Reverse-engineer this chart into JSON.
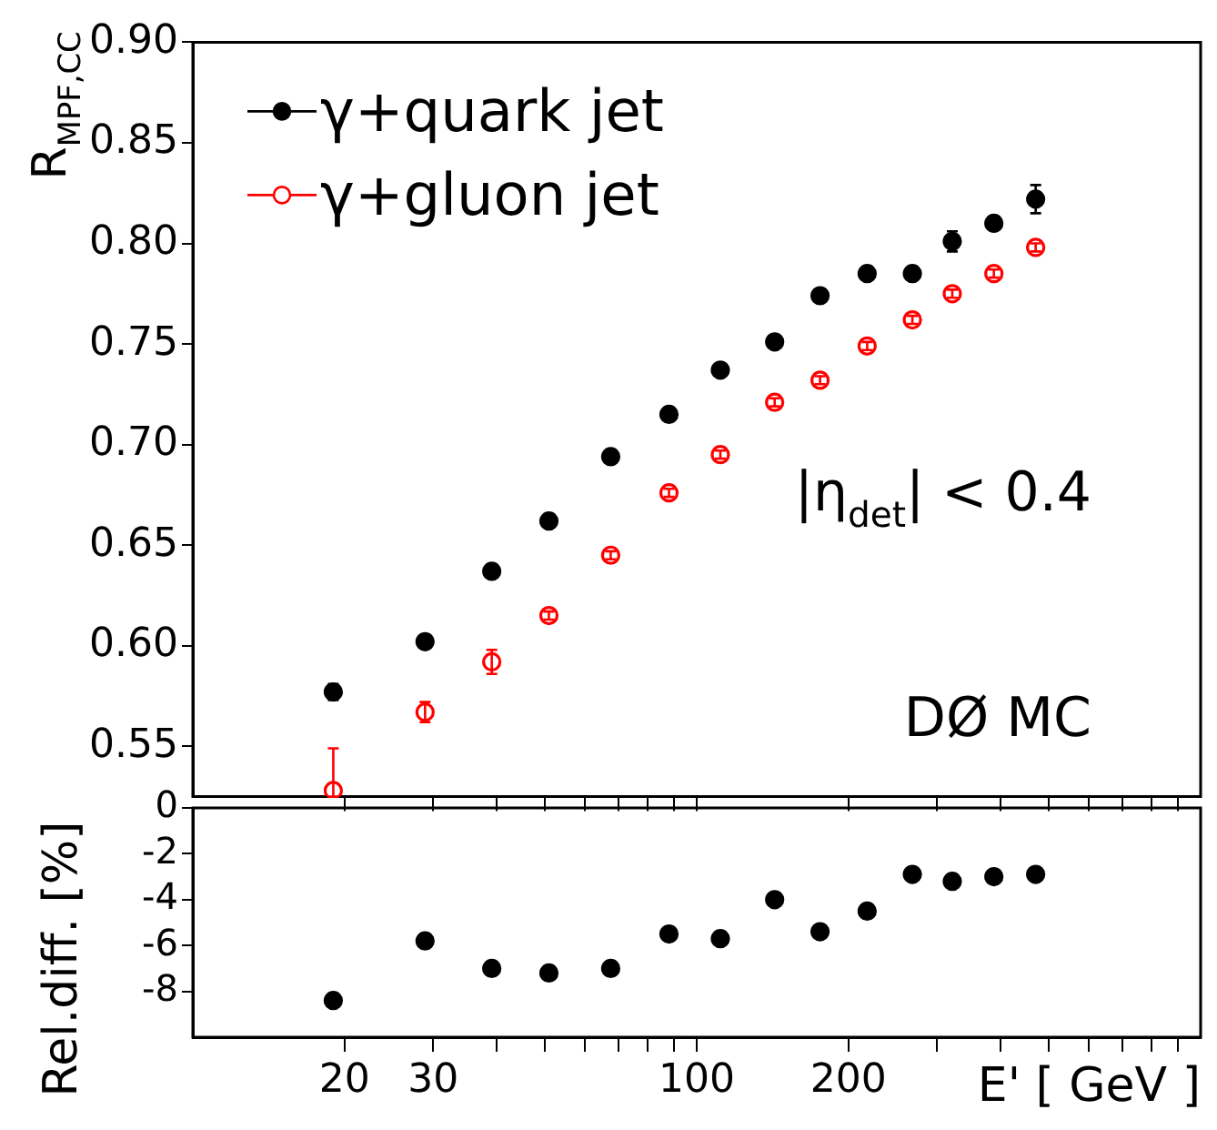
{
  "chart_data": [
    {
      "type": "scatter",
      "ylabel": "R$_{MPF,CC}$",
      "legend": "top left",
      "marker": "circle",
      "tick_labels": "y",
      "x": [
        19.0,
        28.9,
        39.2,
        50.9,
        67.5,
        88.1,
        111.4,
        142.8,
        175.7,
        217.9,
        267.9,
        321.5,
        388.8,
        470.6
      ],
      "series": [
        {
          "name": "γ+quark jet",
          "color": "#000000",
          "values": [
            0.577,
            0.602,
            0.637,
            0.662,
            0.694,
            0.715,
            0.737,
            0.751,
            0.774,
            0.785,
            0.785,
            0.801,
            0.81,
            0.822
          ],
          "errors": [
            0.004,
            null,
            null,
            null,
            null,
            null,
            null,
            null,
            null,
            null,
            null,
            0.005,
            null,
            0.007
          ]
        },
        {
          "name": "γ+gluon jet",
          "color": "#ff0000",
          "values": [
            0.528,
            0.567,
            0.592,
            0.615,
            0.645,
            0.676,
            0.695,
            0.721,
            0.732,
            0.749,
            0.762,
            0.775,
            0.785,
            0.798
          ],
          "errors": [
            [
              0.525,
              0.549
            ],
            0.005,
            0.006,
            0.002,
            0.002,
            0.002,
            0.002,
            0.002,
            0.002,
            0.002,
            0.002,
            0.002,
            0.002,
            0.002
          ]
        }
      ],
      "xlim": [
        10,
        1000
      ],
      "xticks": [
        {
          "value": 20,
          "label": null
        },
        {
          "value": 30,
          "label": null
        },
        {
          "value": 40,
          "label": null
        },
        {
          "value": 50,
          "label": null
        },
        {
          "value": 60,
          "label": null
        },
        {
          "value": 70,
          "label": null
        },
        {
          "value": 80,
          "label": null
        },
        {
          "value": 90,
          "label": null
        },
        {
          "value": 100,
          "label": null
        },
        {
          "value": 200,
          "label": null
        },
        {
          "value": 300,
          "label": null
        },
        {
          "value": 400,
          "label": null
        },
        {
          "value": 500,
          "label": null
        },
        {
          "value": 600,
          "label": null
        },
        {
          "value": 700,
          "label": null
        },
        {
          "value": 800,
          "label": null
        },
        {
          "value": 900,
          "label": null
        }
      ],
      "log": "x",
      "ylim": [
        0.525,
        0.9
      ],
      "yticks": [
        {
          "value": 0.55,
          "label": "0.55"
        },
        {
          "value": 0.6,
          "label": "0.60"
        },
        {
          "value": 0.65,
          "label": "0.65"
        },
        {
          "value": 0.7,
          "label": "0.70"
        },
        {
          "value": 0.75,
          "label": "0.75"
        },
        {
          "value": 0.8,
          "label": "0.80"
        },
        {
          "value": 0.85,
          "label": "0.85"
        },
        {
          "value": 0.9,
          "label": "0.90"
        }
      ],
      "annotations": [
        "|η$_{det}$| < 0.4",
        "DØ MC"
      ]
    },
    {
      "type": "scatter",
      "xlabel": "E' [ GeV ]",
      "ylabel": "Rel.diff. [%]",
      "marker": "circle",
      "x": [
        19.0,
        28.9,
        39.2,
        50.9,
        67.5,
        88.1,
        111.4,
        142.8,
        175.7,
        217.9,
        267.9,
        321.5,
        388.8,
        470.6
      ],
      "series": [
        {
          "color": "#000000",
          "values": [
            -8.4,
            -5.8,
            -7.0,
            -7.2,
            -7.0,
            -5.5,
            -5.7,
            -4.0,
            -5.4,
            -4.5,
            -2.9,
            -3.2,
            -3.0,
            -2.9
          ]
        }
      ],
      "xlim": [
        10,
        1000
      ],
      "xticks": [
        20,
        30,
        {
          "value": 40,
          "label": null
        },
        {
          "value": 50,
          "label": null
        },
        {
          "value": 60,
          "label": null
        },
        {
          "value": 70,
          "label": null
        },
        {
          "value": 80,
          "label": null
        },
        {
          "value": 90,
          "label": null
        },
        100,
        200,
        {
          "value": 300,
          "label": null
        },
        {
          "value": 400,
          "label": null
        },
        {
          "value": 500,
          "label": null
        },
        {
          "value": 600,
          "label": null
        },
        {
          "value": 700,
          "label": null
        },
        {
          "value": 800,
          "label": null
        },
        {
          "value": 900,
          "label": null
        }
      ],
      "log": "x",
      "ylim": [
        -10,
        0
      ],
      "yticks": [
        0,
        -2,
        -4,
        -6,
        -8
      ]
    }
  ]
}
